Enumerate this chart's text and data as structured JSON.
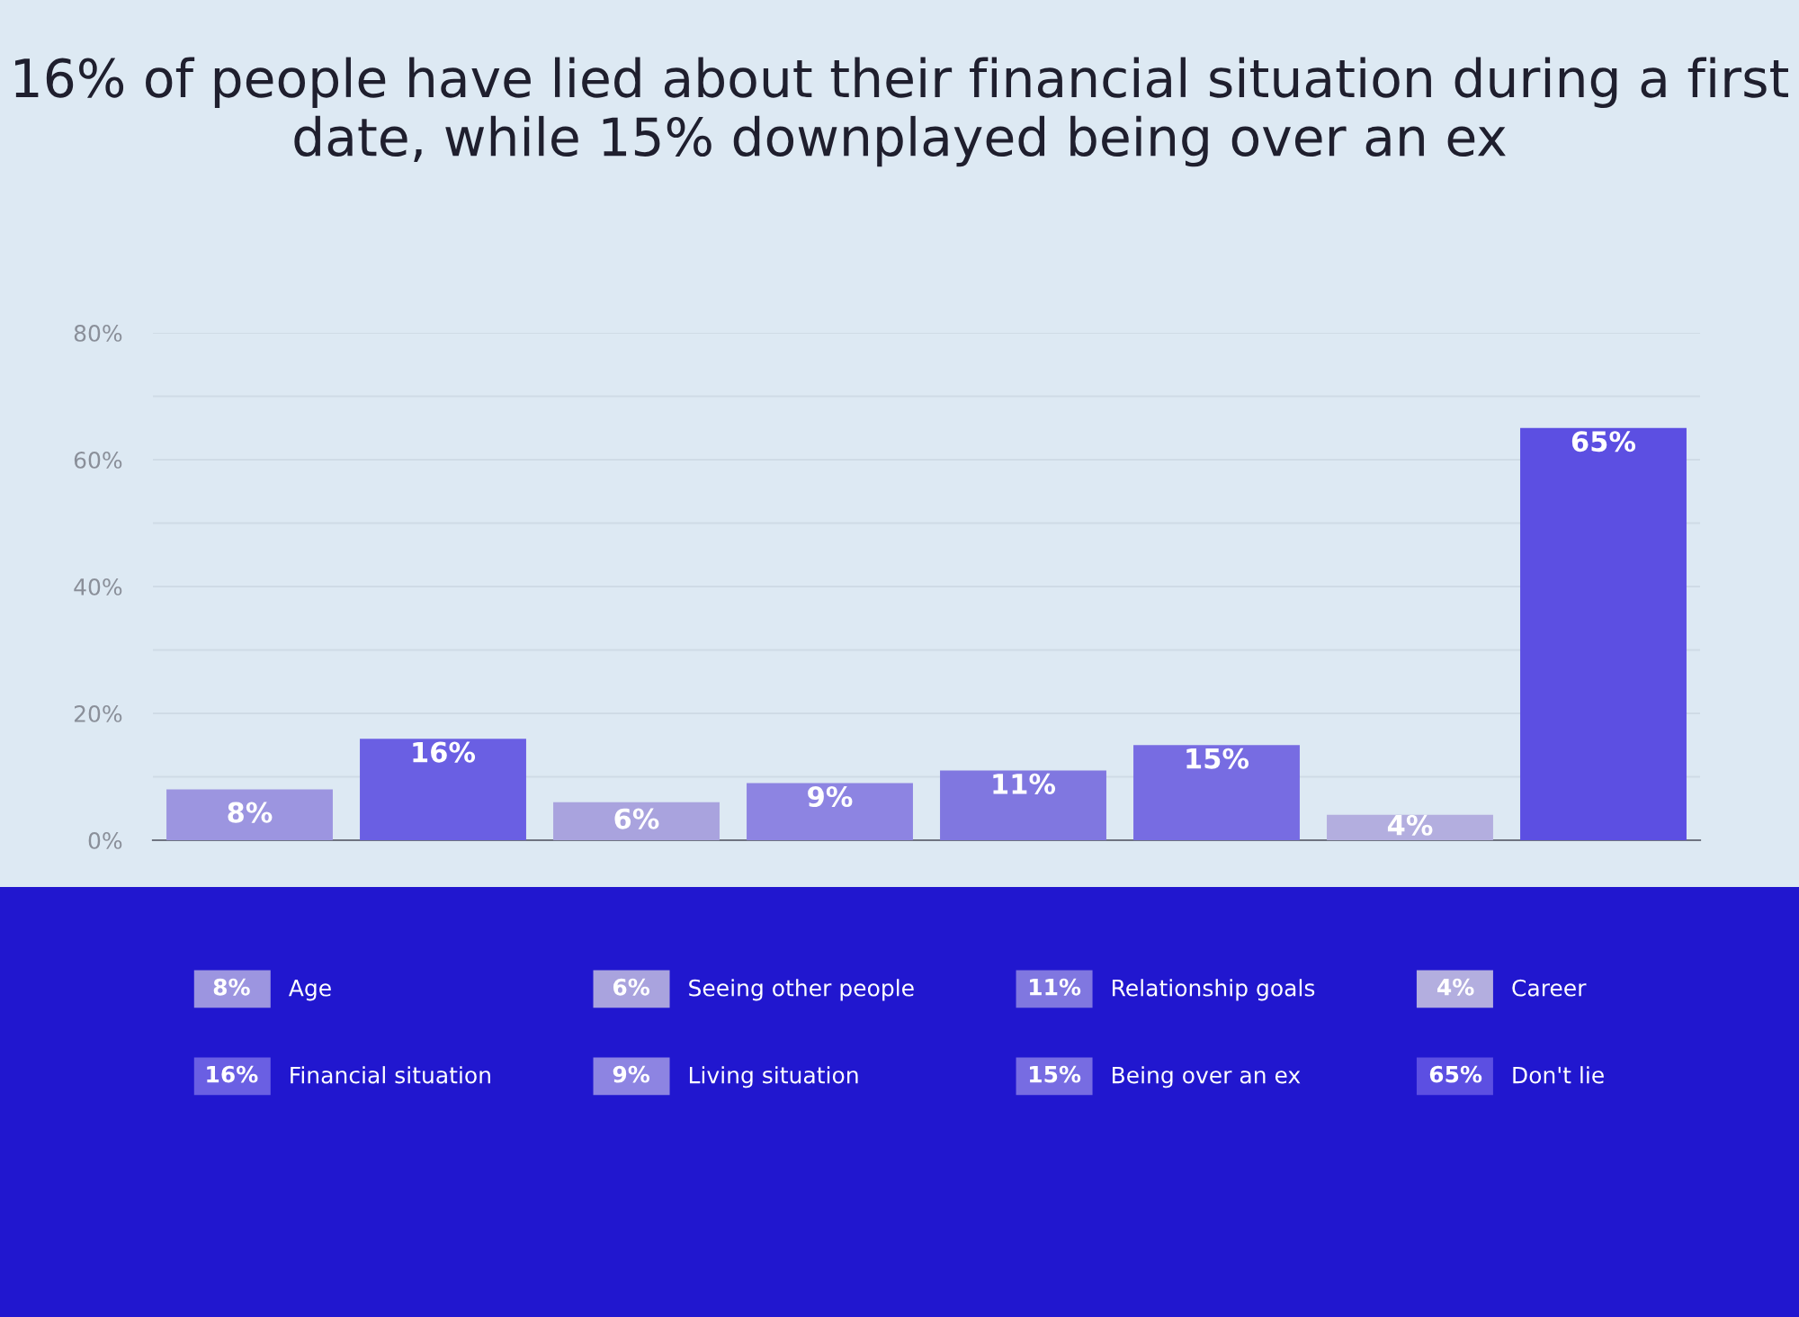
{
  "chart_data": {
    "type": "bar",
    "title": "16% of people have lied about their financial situation during a first date, while 15% downplayed being over an ex",
    "categories": [
      null,
      null,
      null,
      null,
      null,
      null,
      null,
      null
    ],
    "series": [
      {
        "name": "Age",
        "color": "#9c95e0",
        "values": [
          8,
          null,
          null,
          null,
          null,
          null,
          null,
          null
        ],
        "value_labels": [
          "8%",
          null,
          null,
          null,
          null,
          null,
          null,
          null
        ]
      },
      {
        "name": "Financial situation",
        "color": "#6a5fe3",
        "values": [
          null,
          16,
          null,
          null,
          null,
          null,
          null,
          null
        ],
        "value_labels": [
          null,
          "16%",
          null,
          null,
          null,
          null,
          null,
          null
        ]
      },
      {
        "name": "Seeing other people",
        "color": "#a9a3de",
        "values": [
          null,
          null,
          6,
          null,
          null,
          null,
          null,
          null
        ],
        "value_labels": [
          null,
          null,
          "6%",
          null,
          null,
          null,
          null,
          null
        ]
      },
      {
        "name": "Living situation",
        "color": "#8d84e2",
        "values": [
          null,
          null,
          null,
          9,
          null,
          null,
          null,
          null
        ],
        "value_labels": [
          null,
          null,
          null,
          "9%",
          null,
          null,
          null,
          null
        ]
      },
      {
        "name": "Relationship goals",
        "color": "#8077e0",
        "values": [
          null,
          null,
          null,
          null,
          11,
          null,
          null,
          null
        ],
        "value_labels": [
          null,
          null,
          null,
          null,
          "11%",
          null,
          null,
          null
        ]
      },
      {
        "name": "Being over an ex",
        "color": "#776ce2",
        "values": [
          null,
          null,
          null,
          null,
          null,
          15,
          null,
          null
        ],
        "value_labels": [
          null,
          null,
          null,
          null,
          null,
          "15%",
          null,
          null
        ]
      },
      {
        "name": "Career",
        "color": "#b3aedf",
        "values": [
          null,
          null,
          null,
          null,
          null,
          null,
          4,
          null
        ],
        "value_labels": [
          null,
          null,
          null,
          null,
          null,
          null,
          "4%",
          null
        ]
      },
      {
        "name": "Don't lie",
        "color": "#5c4fe2",
        "values": [
          null,
          null,
          null,
          null,
          null,
          null,
          null,
          65
        ],
        "value_labels": [
          null,
          null,
          null,
          null,
          null,
          null,
          null,
          "65%"
        ]
      }
    ],
    "ylim": [
      0,
      80
    ],
    "yticks": [
      {
        "value": 0,
        "label": "0%"
      },
      {
        "value": 10,
        "label": null
      },
      {
        "value": 20,
        "label": "20%"
      },
      {
        "value": 30,
        "label": null
      },
      {
        "value": 40,
        "label": "40%"
      },
      {
        "value": 50,
        "label": null
      },
      {
        "value": 60,
        "label": "60%"
      },
      {
        "value": 70,
        "label": null
      },
      {
        "value": 80,
        "label": "80%"
      }
    ],
    "grid": "y",
    "legend": "bottom",
    "tick_labels": "y"
  }
}
